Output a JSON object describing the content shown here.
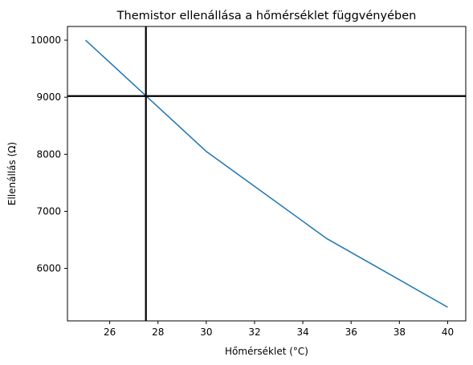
{
  "chart_data": {
    "type": "line",
    "title": "Themistor ellenállása a hőmérséklet függvényében",
    "xlabel": "Hőmérséklet (°C)",
    "ylabel": "Ellenállás (Ω)",
    "xlim": [
      24.25,
      40.75
    ],
    "ylim": [
      5080,
      10240
    ],
    "x_ticks": [
      26,
      28,
      30,
      32,
      34,
      36,
      38,
      40
    ],
    "y_ticks": [
      6000,
      7000,
      8000,
      9000,
      10000
    ],
    "grid": false,
    "series": [
      {
        "x": [
          25,
          30,
          35,
          40
        ],
        "y": [
          10000,
          8050,
          6520,
          5320
        ],
        "color": "#1f77b4"
      }
    ],
    "reference_lines": {
      "vertical_x": 27.5,
      "horizontal_y": 9020,
      "color": "#000000"
    }
  }
}
